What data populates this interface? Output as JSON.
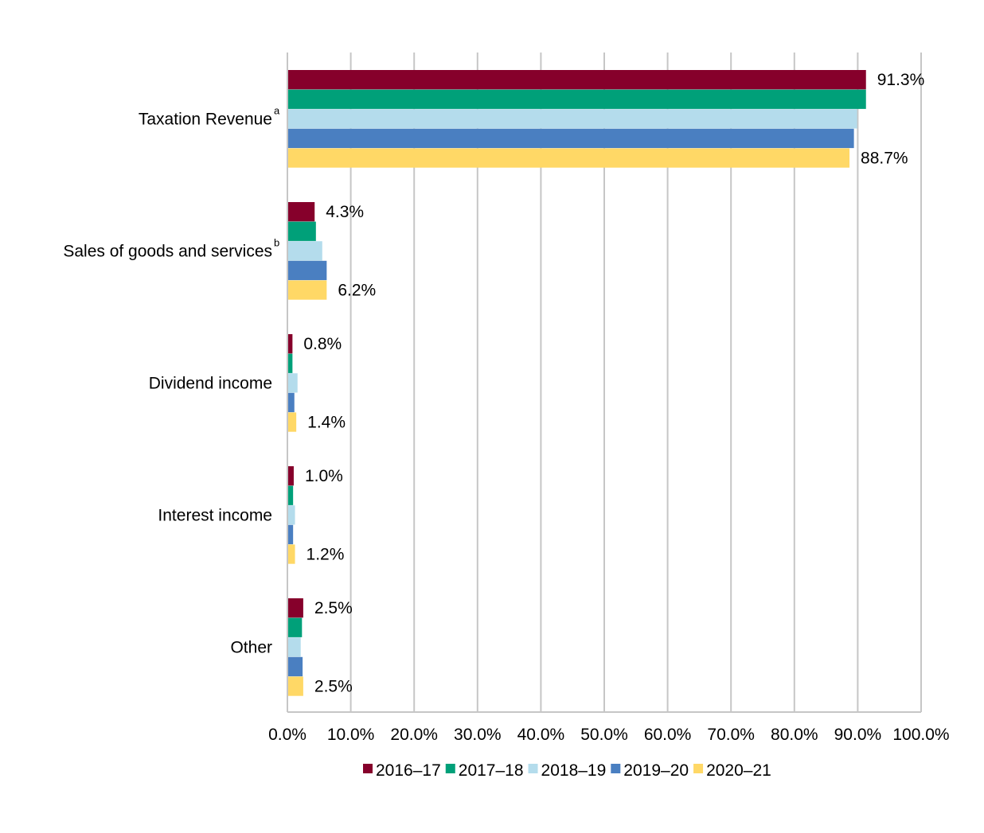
{
  "chart_data": {
    "type": "bar",
    "orientation": "horizontal",
    "categories": [
      {
        "label": "Taxation Revenue",
        "superscript": "a"
      },
      {
        "label": "Sales of goods and services",
        "superscript": "b"
      },
      {
        "label": "Dividend income",
        "superscript": ""
      },
      {
        "label": "Interest income",
        "superscript": ""
      },
      {
        "label": "Other",
        "superscript": ""
      }
    ],
    "series": [
      {
        "name": "2016–17",
        "color": "#86002b",
        "values": [
          91.3,
          4.3,
          0.8,
          1.0,
          2.5
        ]
      },
      {
        "name": "2017–18",
        "color": "#00a079",
        "values": [
          91.3,
          4.5,
          0.8,
          0.9,
          2.3
        ]
      },
      {
        "name": "2018–19",
        "color": "#b4dcec",
        "values": [
          89.9,
          5.5,
          1.6,
          1.2,
          2.1
        ]
      },
      {
        "name": "2019–20",
        "color": "#4a7fc1",
        "values": [
          89.4,
          6.2,
          1.1,
          0.9,
          2.4
        ]
      },
      {
        "name": "2020–21",
        "color": "#ffd866",
        "values": [
          88.7,
          6.2,
          1.4,
          1.2,
          2.5
        ]
      }
    ],
    "data_labels": [
      {
        "category": 0,
        "series": 0,
        "text": "91.3%"
      },
      {
        "category": 0,
        "series": 4,
        "text": "88.7%"
      },
      {
        "category": 1,
        "series": 0,
        "text": "4.3%"
      },
      {
        "category": 1,
        "series": 4,
        "text": "6.2%"
      },
      {
        "category": 2,
        "series": 0,
        "text": "0.8%"
      },
      {
        "category": 2,
        "series": 4,
        "text": "1.4%"
      },
      {
        "category": 3,
        "series": 0,
        "text": "1.0%"
      },
      {
        "category": 3,
        "series": 4,
        "text": "1.2%"
      },
      {
        "category": 4,
        "series": 0,
        "text": "2.5%"
      },
      {
        "category": 4,
        "series": 4,
        "text": "2.5%"
      }
    ],
    "x_ticks": [
      "0.0%",
      "10.0%",
      "20.0%",
      "30.0%",
      "40.0%",
      "50.0%",
      "60.0%",
      "70.0%",
      "80.0%",
      "90.0%",
      "100.0%"
    ],
    "xlim": [
      0,
      100
    ],
    "x_tick_step": 10,
    "grid": "vertical",
    "legend_position": "bottom",
    "title": "",
    "xlabel": "",
    "ylabel": ""
  }
}
